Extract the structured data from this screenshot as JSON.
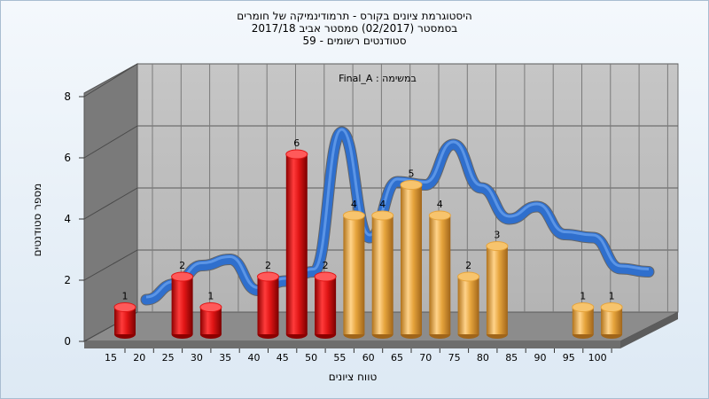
{
  "title_lines": [
    "היסטוגרמת ציונים בקורס - תרמודינמיקה של חומרים",
    "בסמסטר (02/2017) סמסטר אביב 2017/18",
    "סטודנטים רשומים - 59"
  ],
  "chart_data": {
    "type": "bar",
    "title": "היסטוגרמת ציונים בקורס - תרמודינמיקה של חומרים",
    "subtitle": "בסמסטר (02/2017) סמסטר אביב 2017/18 | סטודנטים רשומים - 59",
    "annotation": "במשימה : Final_A",
    "xlabel": "טווח ציונים",
    "ylabel": "מספר סטודנטים",
    "categories": [
      "15",
      "20",
      "25",
      "30",
      "35",
      "40",
      "45",
      "50",
      "55",
      "60",
      "65",
      "70",
      "75",
      "80",
      "85",
      "90",
      "95",
      "100"
    ],
    "values": [
      1,
      0,
      2,
      1,
      0,
      2,
      6,
      2,
      4,
      4,
      5,
      4,
      2,
      3,
      0,
      0,
      1,
      1
    ],
    "bar_groups": [
      "red",
      "red",
      "red",
      "red",
      "red",
      "red",
      "red",
      "red",
      "orange",
      "orange",
      "orange",
      "orange",
      "orange",
      "orange",
      "orange",
      "orange",
      "orange",
      "orange"
    ],
    "yticks": [
      "0",
      "2",
      "4",
      "6",
      "8"
    ],
    "ylim": [
      0,
      8
    ],
    "grid": true,
    "series": [
      {
        "values": [
          1,
          0,
          2,
          1,
          0,
          2,
          6,
          2,
          4,
          4,
          5,
          4,
          2,
          3,
          0,
          0,
          1,
          1
        ]
      }
    ],
    "curve": {
      "type": "ribbon",
      "values": [
        0.4,
        0.9,
        1.5,
        1.7,
        0.7,
        1.0,
        1.3,
        5.8,
        2.4,
        4.2,
        4.1,
        5.4,
        4.0,
        3.0,
        3.4,
        2.5,
        2.4,
        1.4,
        1.3
      ]
    },
    "colors": {
      "red_bar": "#e01515",
      "orange_bar": "#e6a43c",
      "ribbon_blue": "#2f6fcd",
      "ribbon_gray": "#666666",
      "back_wall": "#bcbcbc",
      "side_wall": "#7a7a7a",
      "floor": "#8c8c8c"
    }
  }
}
